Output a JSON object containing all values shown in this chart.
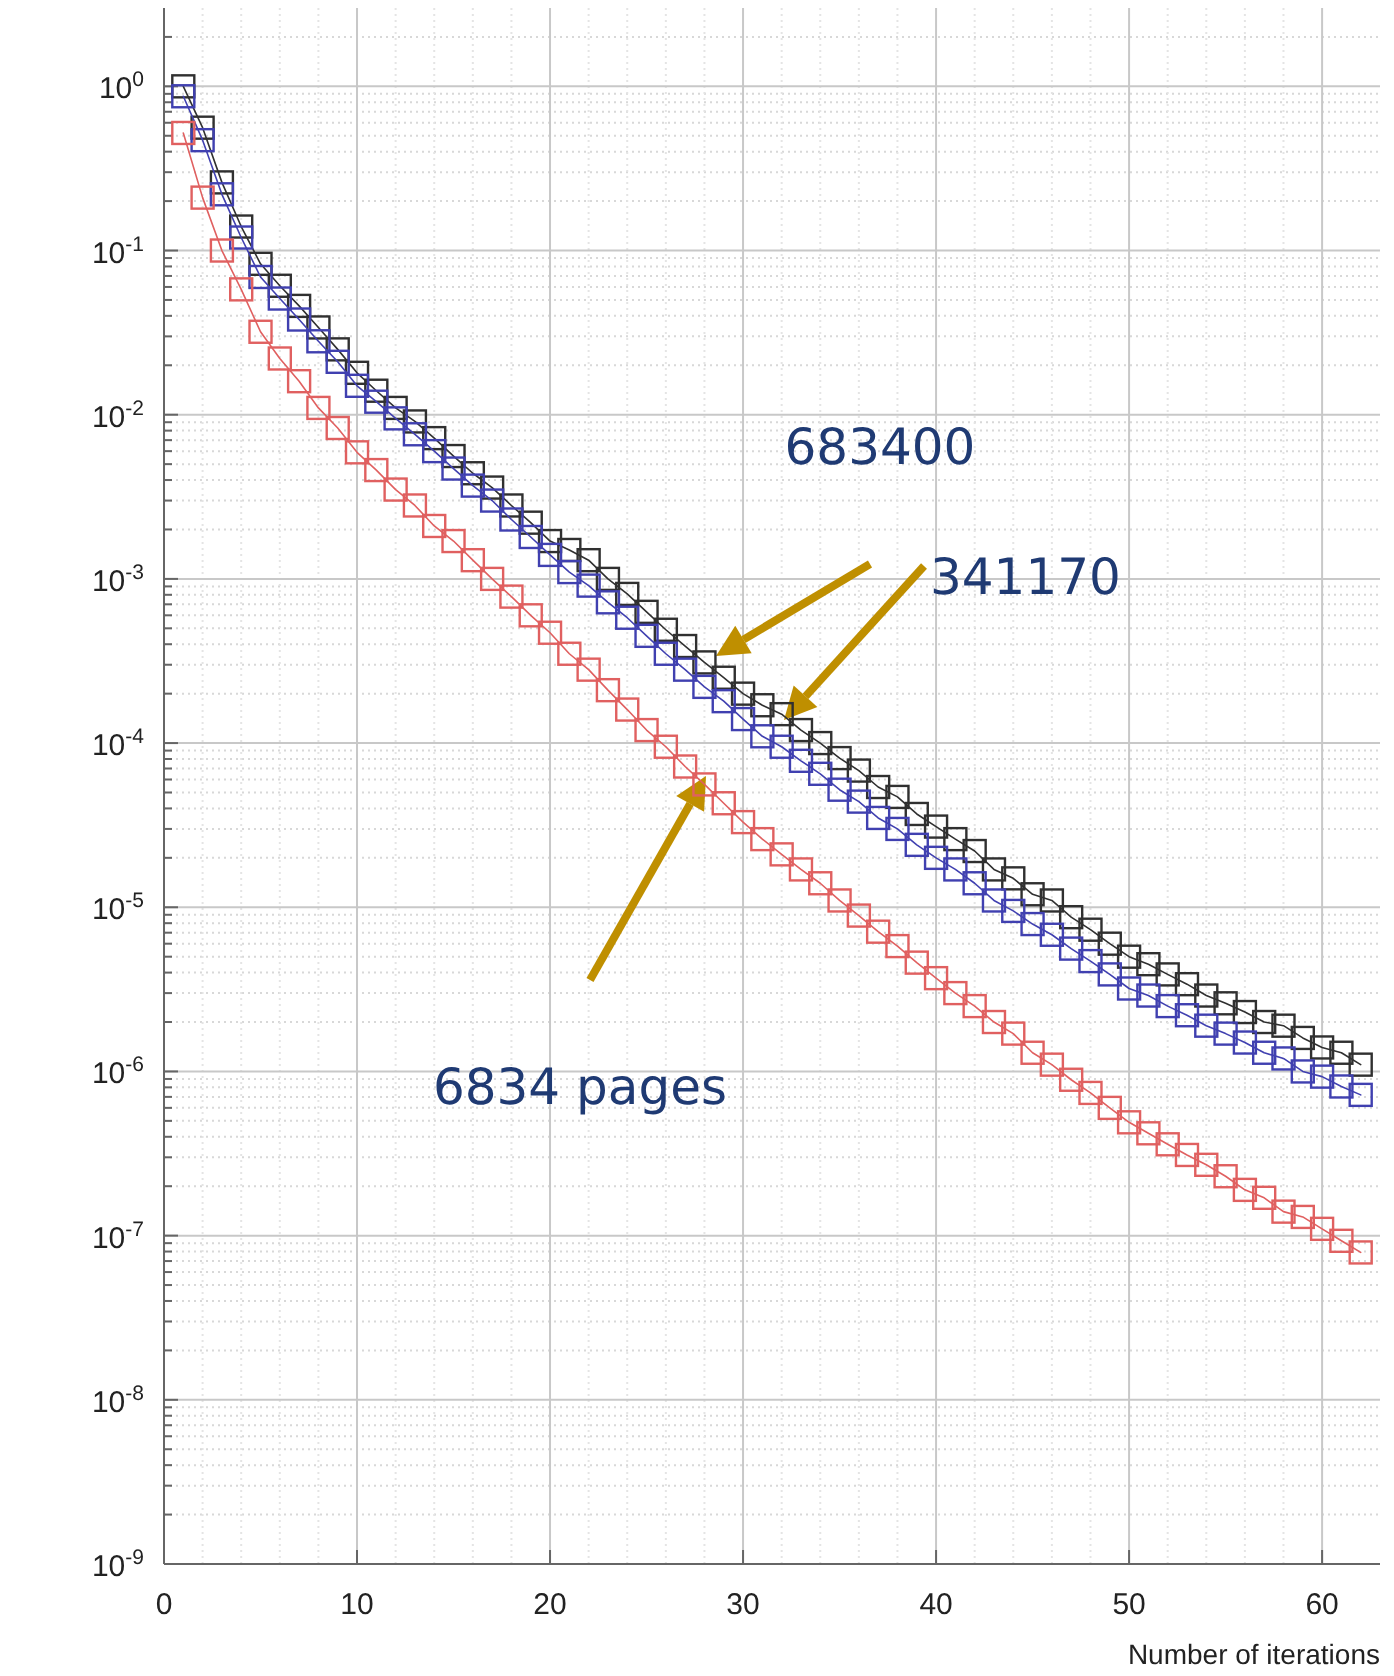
{
  "chart_data": {
    "type": "line",
    "xlabel": "Number of iterations",
    "x": [
      1,
      2,
      3,
      4,
      5,
      6,
      7,
      8,
      9,
      10,
      11,
      12,
      13,
      14,
      15,
      16,
      17,
      18,
      19,
      20,
      21,
      22,
      23,
      24,
      25,
      26,
      27,
      28,
      29,
      30,
      31,
      32,
      33,
      34,
      35,
      36,
      37,
      38,
      39,
      40,
      41,
      42,
      43,
      44,
      45,
      46,
      47,
      48,
      49,
      50,
      51,
      52,
      53,
      54,
      55,
      56,
      57,
      58,
      59,
      60,
      61,
      62
    ],
    "series": [
      {
        "color": "#303030",
        "values": [
          1.0,
          0.56,
          0.26,
          0.14,
          0.083,
          0.061,
          0.046,
          0.034,
          0.025,
          0.018,
          0.014,
          0.011,
          0.0091,
          0.0072,
          0.0056,
          0.0044,
          0.0036,
          0.0028,
          0.0022,
          0.0017,
          0.0015,
          0.0013,
          0.001,
          0.00081,
          0.00063,
          0.00049,
          0.00039,
          0.00031,
          0.00025,
          0.0002,
          0.00017,
          0.00015,
          0.00012,
          0.0001,
          8.1e-05,
          6.8e-05,
          5.4e-05,
          4.7e-05,
          3.7e-05,
          3.1e-05,
          2.6e-05,
          2.2e-05,
          1.7e-05,
          1.5e-05,
          1.2e-05,
          1.1e-05,
          8.7e-06,
          7.3e-06,
          6e-06,
          5e-06,
          4.5e-06,
          3.9e-06,
          3.4e-06,
          2.9e-06,
          2.6e-06,
          2.3e-06,
          2e-06,
          1.9e-06,
          1.6e-06,
          1.4e-06,
          1.3e-06,
          1.1e-06
        ]
      },
      {
        "color": "#4040b0",
        "values": [
          0.87,
          0.47,
          0.22,
          0.12,
          0.069,
          0.051,
          0.038,
          0.028,
          0.021,
          0.015,
          0.012,
          0.0095,
          0.0076,
          0.006,
          0.0047,
          0.0037,
          0.003,
          0.0023,
          0.0018,
          0.0014,
          0.0011,
          0.00091,
          0.00072,
          0.00058,
          0.00045,
          0.00035,
          0.00028,
          0.00022,
          0.00018,
          0.00014,
          0.00011,
          9.5e-05,
          7.8e-05,
          6.5e-05,
          5.2e-05,
          4.4e-05,
          3.5e-05,
          3e-05,
          2.4e-05,
          2e-05,
          1.7e-05,
          1.4e-05,
          1.1e-05,
          9.5e-06,
          7.9e-06,
          6.8e-06,
          5.6e-06,
          4.7e-06,
          3.9e-06,
          3.2e-06,
          2.9e-06,
          2.5e-06,
          2.2e-06,
          1.9e-06,
          1.7e-06,
          1.5e-06,
          1.3e-06,
          1.2e-06,
          1e-06,
          9.3e-07,
          8.1e-07,
          7.2e-07
        ]
      },
      {
        "color": "#e06060",
        "values": [
          0.52,
          0.21,
          0.1,
          0.058,
          0.032,
          0.022,
          0.016,
          0.011,
          0.0083,
          0.0059,
          0.0046,
          0.0035,
          0.0028,
          0.0021,
          0.0017,
          0.0013,
          0.001,
          0.00078,
          0.0006,
          0.00047,
          0.00035,
          0.00028,
          0.00021,
          0.00016,
          0.00012,
          9.5e-05,
          7.2e-05,
          5.6e-05,
          4.3e-05,
          3.3e-05,
          2.6e-05,
          2.1e-05,
          1.7e-05,
          1.4e-05,
          1.1e-05,
          8.9e-06,
          7.1e-06,
          5.8e-06,
          4.6e-06,
          3.7e-06,
          3e-06,
          2.5e-06,
          2e-06,
          1.7e-06,
          1.3e-06,
          1.1e-06,
          8.9e-07,
          7.4e-07,
          6e-07,
          4.9e-07,
          4.2e-07,
          3.6e-07,
          3.1e-07,
          2.7e-07,
          2.3e-07,
          1.9e-07,
          1.7e-07,
          1.4e-07,
          1.3e-07,
          1.1e-07,
          9.3e-08,
          7.9e-08
        ]
      }
    ],
    "xlim": [
      0,
      63
    ],
    "xticks": [
      0,
      10,
      20,
      30,
      40,
      50,
      60
    ],
    "log": true,
    "ylim": [
      1e-09,
      3
    ],
    "yticks": [
      {
        "value": 1e-09,
        "label": "10$^{-9}$"
      },
      {
        "value": 1e-08,
        "label": "10$^{-8}$"
      },
      {
        "value": 1e-07,
        "label": "10$^{-7}$"
      },
      {
        "value": 1e-06,
        "label": "10$^{-6}$"
      },
      {
        "value": 1e-05,
        "label": "10$^{-5}$"
      },
      {
        "value": 0.0001,
        "label": "10$^{-4}$"
      },
      {
        "value": 0.001,
        "label": "10$^{-3}$"
      },
      {
        "value": 0.01,
        "label": "10$^{-2}$"
      },
      {
        "value": 0.1,
        "label": "10$^{-1}$"
      },
      {
        "value": 1,
        "label": "10$^{0}$"
      }
    ],
    "grid": true,
    "marker": "square",
    "line_style": "solid",
    "annotations": [
      "683400",
      "341170",
      "6834 pages"
    ]
  }
}
